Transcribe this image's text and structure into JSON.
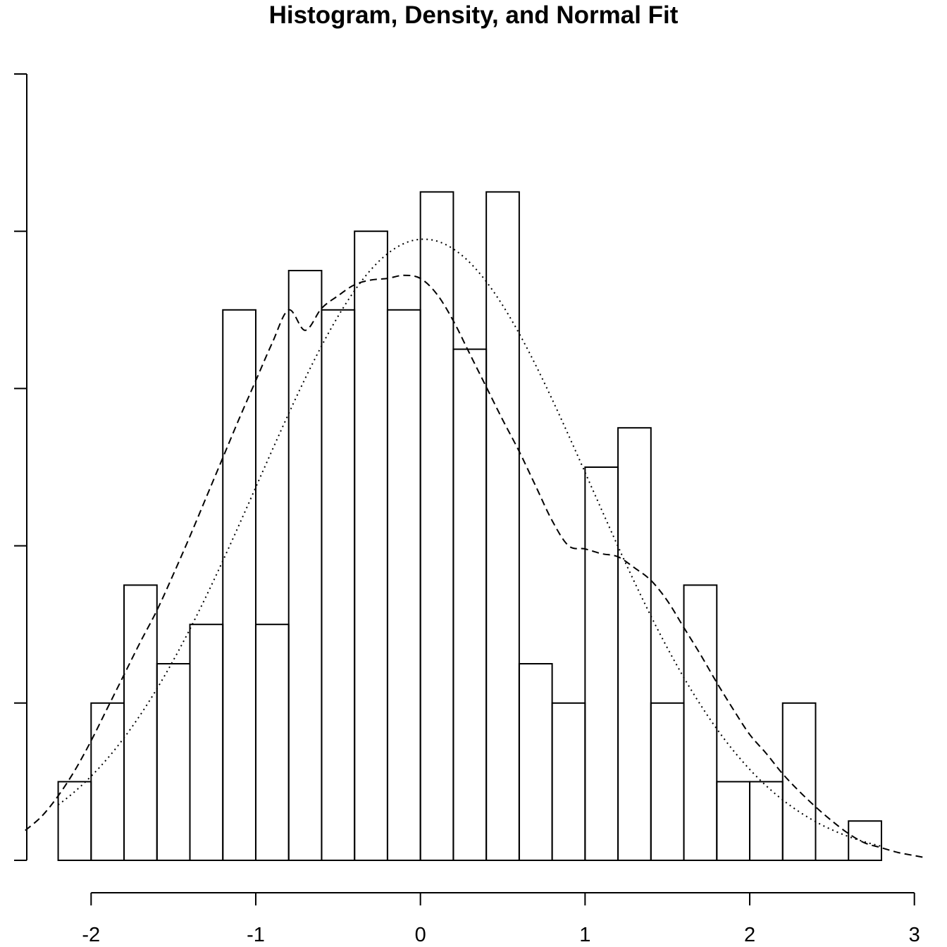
{
  "chart_data": {
    "type": "bar",
    "title": "Histogram, Density, and Normal Fit",
    "xlabel": "",
    "ylabel": "",
    "bin_width": 0.2,
    "bins": [
      {
        "start": -2.2,
        "end": -2.0,
        "value": 0.05
      },
      {
        "start": -2.0,
        "end": -1.8,
        "value": 0.1
      },
      {
        "start": -1.8,
        "end": -1.6,
        "value": 0.175
      },
      {
        "start": -1.6,
        "end": -1.4,
        "value": 0.125
      },
      {
        "start": -1.4,
        "end": -1.2,
        "value": 0.15
      },
      {
        "start": -1.2,
        "end": -1.0,
        "value": 0.35
      },
      {
        "start": -1.0,
        "end": -0.8,
        "value": 0.15
      },
      {
        "start": -0.8,
        "end": -0.6,
        "value": 0.375
      },
      {
        "start": -0.6,
        "end": -0.4,
        "value": 0.35
      },
      {
        "start": -0.4,
        "end": -0.2,
        "value": 0.4
      },
      {
        "start": -0.2,
        "end": 0.0,
        "value": 0.35
      },
      {
        "start": 0.0,
        "end": 0.2,
        "value": 0.425
      },
      {
        "start": 0.2,
        "end": 0.4,
        "value": 0.325
      },
      {
        "start": 0.4,
        "end": 0.6,
        "value": 0.425
      },
      {
        "start": 0.6,
        "end": 0.8,
        "value": 0.125
      },
      {
        "start": 0.8,
        "end": 1.0,
        "value": 0.1
      },
      {
        "start": 1.0,
        "end": 1.2,
        "value": 0.25
      },
      {
        "start": 1.2,
        "end": 1.4,
        "value": 0.275
      },
      {
        "start": 1.4,
        "end": 1.6,
        "value": 0.1
      },
      {
        "start": 1.6,
        "end": 1.8,
        "value": 0.175
      },
      {
        "start": 1.8,
        "end": 2.0,
        "value": 0.05
      },
      {
        "start": 2.0,
        "end": 2.2,
        "value": 0.05
      },
      {
        "start": 2.2,
        "end": 2.4,
        "value": 0.1
      },
      {
        "start": 2.4,
        "end": 2.6,
        "value": 0.0
      },
      {
        "start": 2.6,
        "end": 2.8,
        "value": 0.025
      }
    ],
    "series": [
      {
        "kind": "kernel-density",
        "line_style": "dashed",
        "x": [
          -2.4,
          -2.3,
          -2.2,
          -2.1,
          -2.0,
          -1.9,
          -1.8,
          -1.7,
          -1.6,
          -1.5,
          -1.4,
          -1.3,
          -1.2,
          -1.1,
          -1.0,
          -0.9,
          -0.8,
          -0.7,
          -0.6,
          -0.5,
          -0.4,
          -0.3,
          -0.2,
          -0.1,
          0.0,
          0.1,
          0.2,
          0.3,
          0.4,
          0.5,
          0.6,
          0.7,
          0.8,
          0.9,
          1.0,
          1.1,
          1.2,
          1.3,
          1.4,
          1.5,
          1.6,
          1.7,
          1.8,
          1.9,
          2.0,
          2.1,
          2.2,
          2.3,
          2.4,
          2.5,
          2.6,
          2.7,
          2.8,
          2.9,
          3.0,
          3.05
        ],
        "y": [
          0.019,
          0.028,
          0.041,
          0.057,
          0.076,
          0.097,
          0.118,
          0.139,
          0.159,
          0.182,
          0.206,
          0.231,
          0.256,
          0.281,
          0.305,
          0.329,
          0.35,
          0.337,
          0.351,
          0.359,
          0.366,
          0.369,
          0.37,
          0.372,
          0.37,
          0.36,
          0.343,
          0.322,
          0.301,
          0.28,
          0.26,
          0.238,
          0.216,
          0.2,
          0.198,
          0.195,
          0.193,
          0.186,
          0.178,
          0.165,
          0.148,
          0.131,
          0.113,
          0.096,
          0.08,
          0.068,
          0.055,
          0.044,
          0.034,
          0.025,
          0.017,
          0.011,
          0.008,
          0.005,
          0.003,
          0.002
        ]
      },
      {
        "kind": "normal-fit",
        "line_style": "dotted",
        "mean": 0.02,
        "sd": 1.01
      }
    ],
    "xlim": [
      -2.4,
      3.04
    ],
    "ylim": [
      0,
      0.5
    ],
    "x_ticks": [
      -2,
      -1,
      0,
      1,
      2,
      3
    ],
    "x_tick_labels": [
      "-2",
      "-1",
      "0",
      "1",
      "2",
      "3"
    ],
    "y_ticks": [
      0,
      0.1,
      0.2,
      0.3,
      0.4,
      0.5
    ],
    "y_tick_labels": [
      "",
      "",
      "",
      "",
      "",
      ""
    ],
    "grid": false,
    "legend": "none"
  }
}
